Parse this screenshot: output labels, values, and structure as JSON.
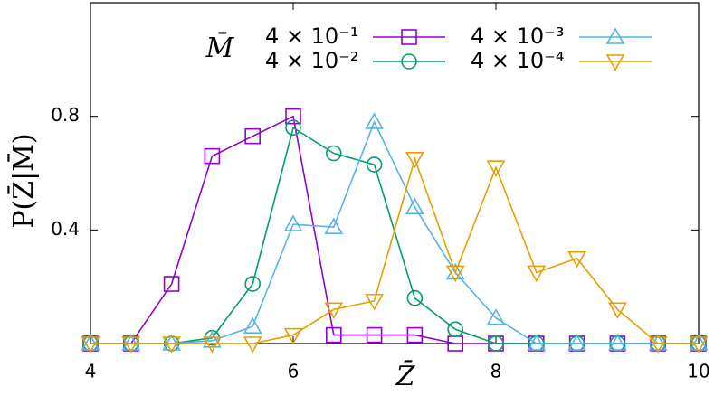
{
  "chart_data": {
    "type": "line",
    "x_label": "Z̄",
    "y_label": "P(Z̄|M̄)",
    "legend_title": "M̄",
    "legend": "top",
    "x": [
      4,
      4.4,
      4.8,
      5.2,
      5.6,
      6.0,
      6.4,
      6.8,
      7.2,
      7.6,
      8.0,
      8.4,
      8.8,
      9.2,
      9.6,
      10
    ],
    "series": [
      {
        "name": "4 × 10⁻¹",
        "color": "#9400d3",
        "marker": "square",
        "values": [
          0,
          0,
          0.21,
          0.66,
          0.73,
          0.8,
          0.03,
          0.03,
          0.03,
          0,
          0,
          0,
          0,
          0,
          0,
          0
        ]
      },
      {
        "name": "4 × 10⁻²",
        "color": "#009e73",
        "marker": "circle",
        "values": [
          0,
          0,
          0,
          0.02,
          0.21,
          0.76,
          0.67,
          0.63,
          0.16,
          0.05,
          0,
          0,
          0,
          0,
          0,
          0
        ]
      },
      {
        "name": "4 × 10⁻³",
        "color": "#56b4e9",
        "marker": "triangle",
        "values": [
          0,
          0,
          0,
          0.01,
          0.06,
          0.42,
          0.41,
          0.78,
          0.48,
          0.25,
          0.09,
          0,
          0,
          0,
          0,
          0
        ]
      },
      {
        "name": "4 × 10⁻⁴",
        "color": "#e69f00",
        "marker": "triangle-down",
        "values": [
          0,
          0,
          0,
          0,
          0,
          0.03,
          0.12,
          0.15,
          0.65,
          0.25,
          0.62,
          0.25,
          0.3,
          0.12,
          0,
          0
        ]
      }
    ],
    "xlim": [
      4,
      10
    ],
    "xticks": [
      4,
      6,
      8,
      10
    ],
    "ylim": [
      0,
      1.2
    ],
    "yticks": [
      0.4,
      0.8
    ]
  }
}
